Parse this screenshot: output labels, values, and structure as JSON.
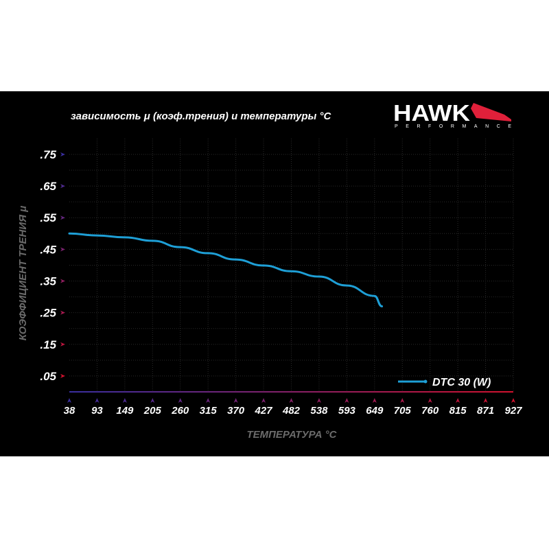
{
  "chart_data": {
    "type": "line",
    "title": "зависимость μ (коэф.трения) и температуры °C",
    "xlabel": "ТЕМПЕРАТУРА °C",
    "ylabel": "КОЭФФИЦИЕНТ ТРЕНИЯ μ",
    "x_ticks": [
      "38",
      "93",
      "149",
      "205",
      "260",
      "315",
      "370",
      "427",
      "482",
      "538",
      "593",
      "649",
      "705",
      "760",
      "815",
      "871",
      "927"
    ],
    "y_ticks": [
      ".75",
      ".65",
      ".55",
      ".45",
      ".35",
      ".25",
      ".15",
      ".05"
    ],
    "xlim": [
      38,
      927
    ],
    "ylim": [
      0,
      0.8
    ],
    "grid": true,
    "legend_position": "bottom-right",
    "series": [
      {
        "name": "DTC 30 (W)",
        "color": "#1e9fd6",
        "x": [
          38,
          93,
          149,
          205,
          260,
          315,
          370,
          427,
          482,
          538,
          593,
          649,
          664
        ],
        "y": [
          0.5,
          0.494,
          0.488,
          0.477,
          0.457,
          0.438,
          0.418,
          0.399,
          0.381,
          0.364,
          0.336,
          0.303,
          0.27
        ]
      }
    ]
  },
  "logo": {
    "brand": "HAWK",
    "sub": "PERFORMANCE",
    "accent": "#e0203a"
  },
  "colors": {
    "background": "#000000",
    "axis_top": "#d2122e",
    "axis_bottom": "#3a2fa0",
    "label_gray": "#6b6b6b"
  }
}
